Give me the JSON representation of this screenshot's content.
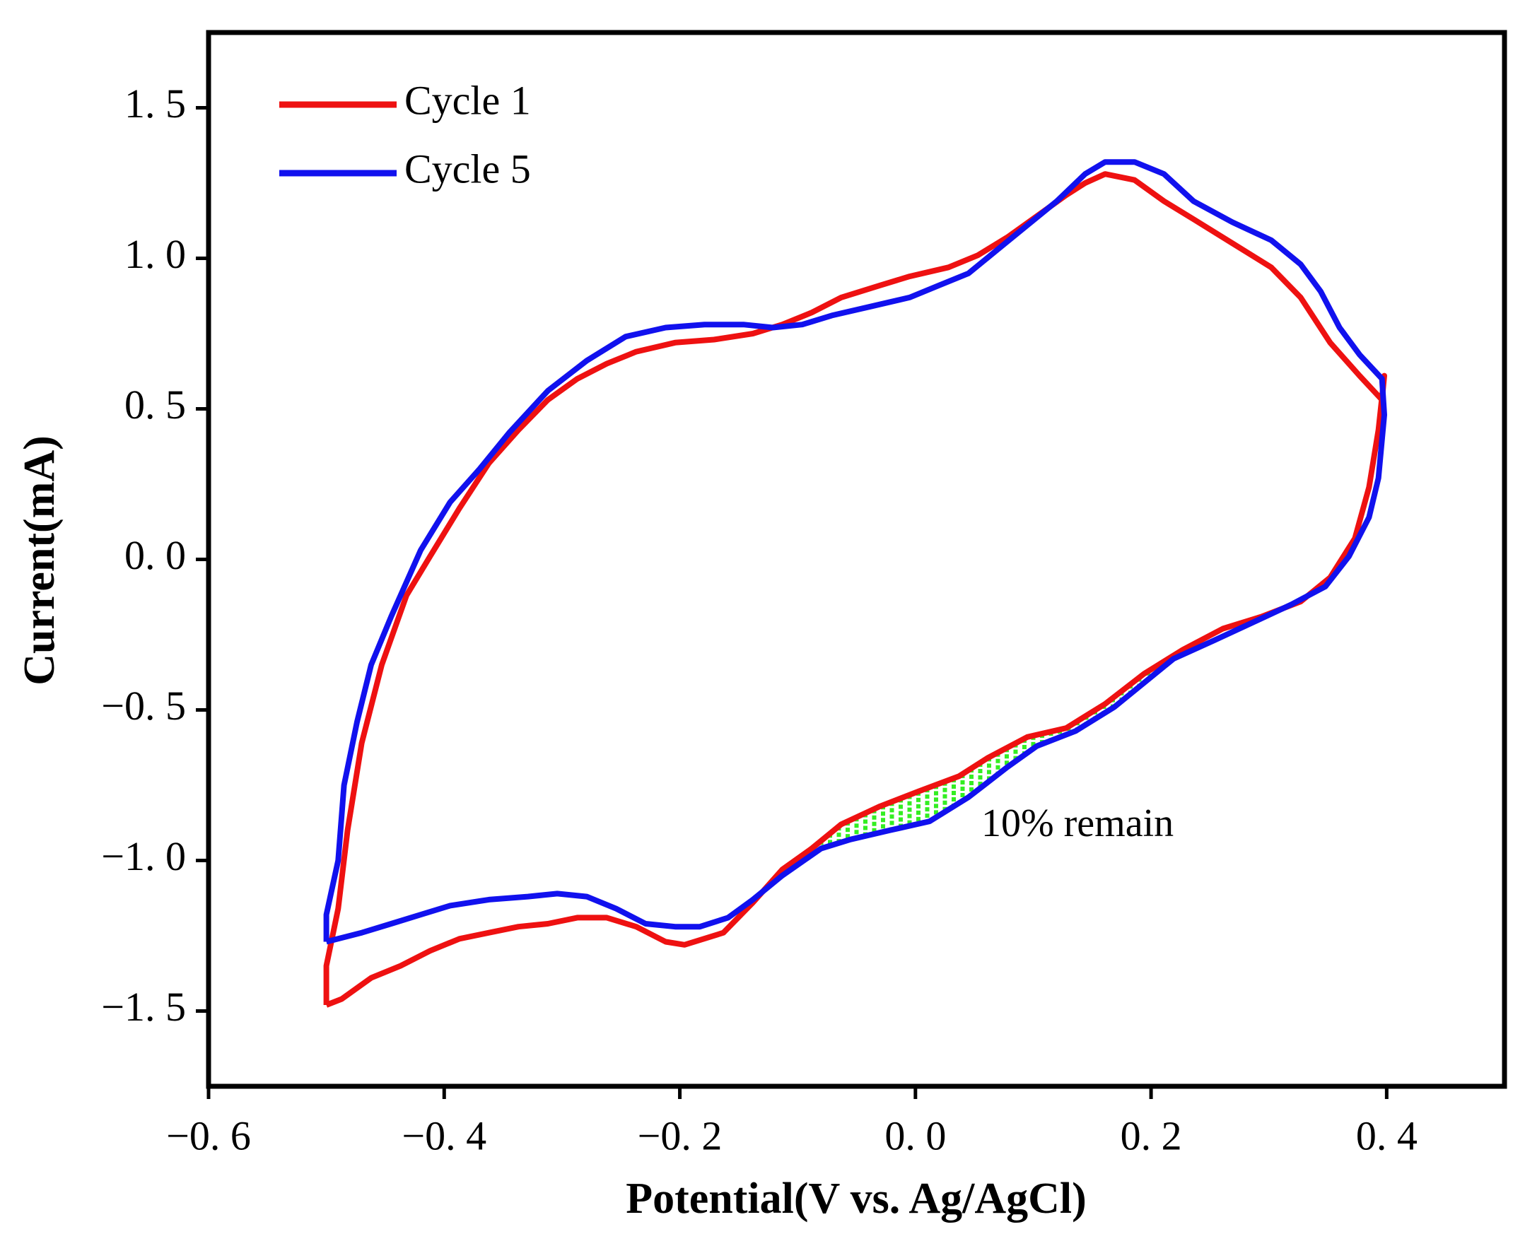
{
  "chart_data": {
    "type": "line",
    "xlabel": "Potential(V vs. Ag/AgCl)",
    "ylabel": "Current(mA)",
    "annotation": "10% remain",
    "xlim": [
      -0.6,
      0.5
    ],
    "ylim": [
      -1.75,
      1.75
    ],
    "xticks": [
      {
        "value": -0.6,
        "label": "−0. 6"
      },
      {
        "value": -0.4,
        "label": "−0. 4"
      },
      {
        "value": -0.2,
        "label": "−0. 2"
      },
      {
        "value": 0.0,
        "label": "0. 0"
      },
      {
        "value": 0.2,
        "label": "0. 2"
      },
      {
        "value": 0.4,
        "label": "0. 4"
      }
    ],
    "yticks": [
      {
        "value": -1.5,
        "label": "−1. 5"
      },
      {
        "value": -1.0,
        "label": "−1. 0"
      },
      {
        "value": -0.5,
        "label": "−0. 5"
      },
      {
        "value": 0.0,
        "label": "0. 0"
      },
      {
        "value": 0.5,
        "label": "0. 5"
      },
      {
        "value": 1.0,
        "label": "1. 0"
      },
      {
        "value": 1.5,
        "label": "1. 5"
      }
    ],
    "legend": "upper left",
    "shade": {
      "xrange": [
        -0.08,
        0.22
      ],
      "color": "#33ee22"
    },
    "series": [
      {
        "name": "Cycle 1",
        "color": "#ee1111",
        "x": [
          -0.5,
          -0.5,
          -0.49,
          -0.482,
          -0.47,
          -0.453,
          -0.432,
          -0.412,
          -0.387,
          -0.362,
          -0.337,
          -0.312,
          -0.287,
          -0.262,
          -0.237,
          -0.204,
          -0.171,
          -0.138,
          -0.113,
          -0.088,
          -0.063,
          -0.03,
          -0.005,
          0.028,
          0.053,
          0.078,
          0.103,
          0.128,
          0.144,
          0.161,
          0.186,
          0.211,
          0.236,
          0.269,
          0.302,
          0.327,
          0.352,
          0.377,
          0.396,
          0.398,
          0.393,
          0.385,
          0.373,
          0.352,
          0.327,
          0.294,
          0.261,
          0.227,
          0.194,
          0.161,
          0.128,
          0.095,
          0.061,
          0.037,
          0.003,
          -0.03,
          -0.063,
          -0.088,
          -0.113,
          -0.138,
          -0.163,
          -0.196,
          -0.212,
          -0.237,
          -0.262,
          -0.287,
          -0.312,
          -0.337,
          -0.362,
          -0.387,
          -0.412,
          -0.437,
          -0.462,
          -0.487,
          -0.5
        ],
        "values": [
          -1.48,
          -1.35,
          -1.16,
          -0.9,
          -0.61,
          -0.35,
          -0.12,
          0.01,
          0.17,
          0.32,
          0.43,
          0.53,
          0.6,
          0.65,
          0.69,
          0.72,
          0.73,
          0.75,
          0.78,
          0.82,
          0.87,
          0.91,
          0.94,
          0.97,
          1.01,
          1.07,
          1.14,
          1.21,
          1.25,
          1.28,
          1.26,
          1.19,
          1.13,
          1.05,
          0.97,
          0.87,
          0.72,
          0.61,
          0.53,
          0.61,
          0.43,
          0.24,
          0.07,
          -0.06,
          -0.14,
          -0.19,
          -0.23,
          -0.3,
          -0.38,
          -0.48,
          -0.56,
          -0.59,
          -0.66,
          -0.72,
          -0.77,
          -0.82,
          -0.88,
          -0.96,
          -1.03,
          -1.14,
          -1.24,
          -1.28,
          -1.27,
          -1.22,
          -1.19,
          -1.19,
          -1.21,
          -1.22,
          -1.24,
          -1.26,
          -1.3,
          -1.35,
          -1.39,
          -1.46,
          -1.48
        ]
      },
      {
        "name": "Cycle 5",
        "color": "#1111ee",
        "x": [
          -0.5,
          -0.5,
          -0.49,
          -0.485,
          -0.474,
          -0.462,
          -0.445,
          -0.42,
          -0.395,
          -0.37,
          -0.345,
          -0.312,
          -0.279,
          -0.246,
          -0.212,
          -0.179,
          -0.146,
          -0.121,
          -0.096,
          -0.071,
          -0.038,
          -0.005,
          0.02,
          0.045,
          0.07,
          0.095,
          0.12,
          0.144,
          0.161,
          0.186,
          0.211,
          0.236,
          0.269,
          0.302,
          0.327,
          0.344,
          0.36,
          0.377,
          0.396,
          0.398,
          0.393,
          0.385,
          0.368,
          0.348,
          0.319,
          0.286,
          0.253,
          0.219,
          0.194,
          0.169,
          0.136,
          0.103,
          0.078,
          0.045,
          0.012,
          -0.022,
          -0.055,
          -0.08,
          -0.113,
          -0.138,
          -0.159,
          -0.183,
          -0.204,
          -0.229,
          -0.254,
          -0.279,
          -0.304,
          -0.329,
          -0.362,
          -0.395,
          -0.42,
          -0.445,
          -0.47,
          -0.49,
          -0.5
        ],
        "values": [
          -1.27,
          -1.18,
          -1.0,
          -0.75,
          -0.54,
          -0.35,
          -0.19,
          0.03,
          0.19,
          0.3,
          0.42,
          0.56,
          0.66,
          0.74,
          0.77,
          0.78,
          0.78,
          0.77,
          0.78,
          0.81,
          0.84,
          0.87,
          0.91,
          0.95,
          1.03,
          1.11,
          1.19,
          1.28,
          1.32,
          1.32,
          1.28,
          1.19,
          1.12,
          1.06,
          0.98,
          0.89,
          0.77,
          0.68,
          0.6,
          0.48,
          0.27,
          0.14,
          0.01,
          -0.09,
          -0.15,
          -0.21,
          -0.27,
          -0.33,
          -0.41,
          -0.49,
          -0.57,
          -0.62,
          -0.69,
          -0.79,
          -0.87,
          -0.9,
          -0.93,
          -0.96,
          -1.05,
          -1.13,
          -1.19,
          -1.22,
          -1.22,
          -1.21,
          -1.16,
          -1.12,
          -1.11,
          -1.12,
          -1.13,
          -1.15,
          -1.18,
          -1.21,
          -1.24,
          -1.26,
          -1.27
        ]
      }
    ]
  }
}
